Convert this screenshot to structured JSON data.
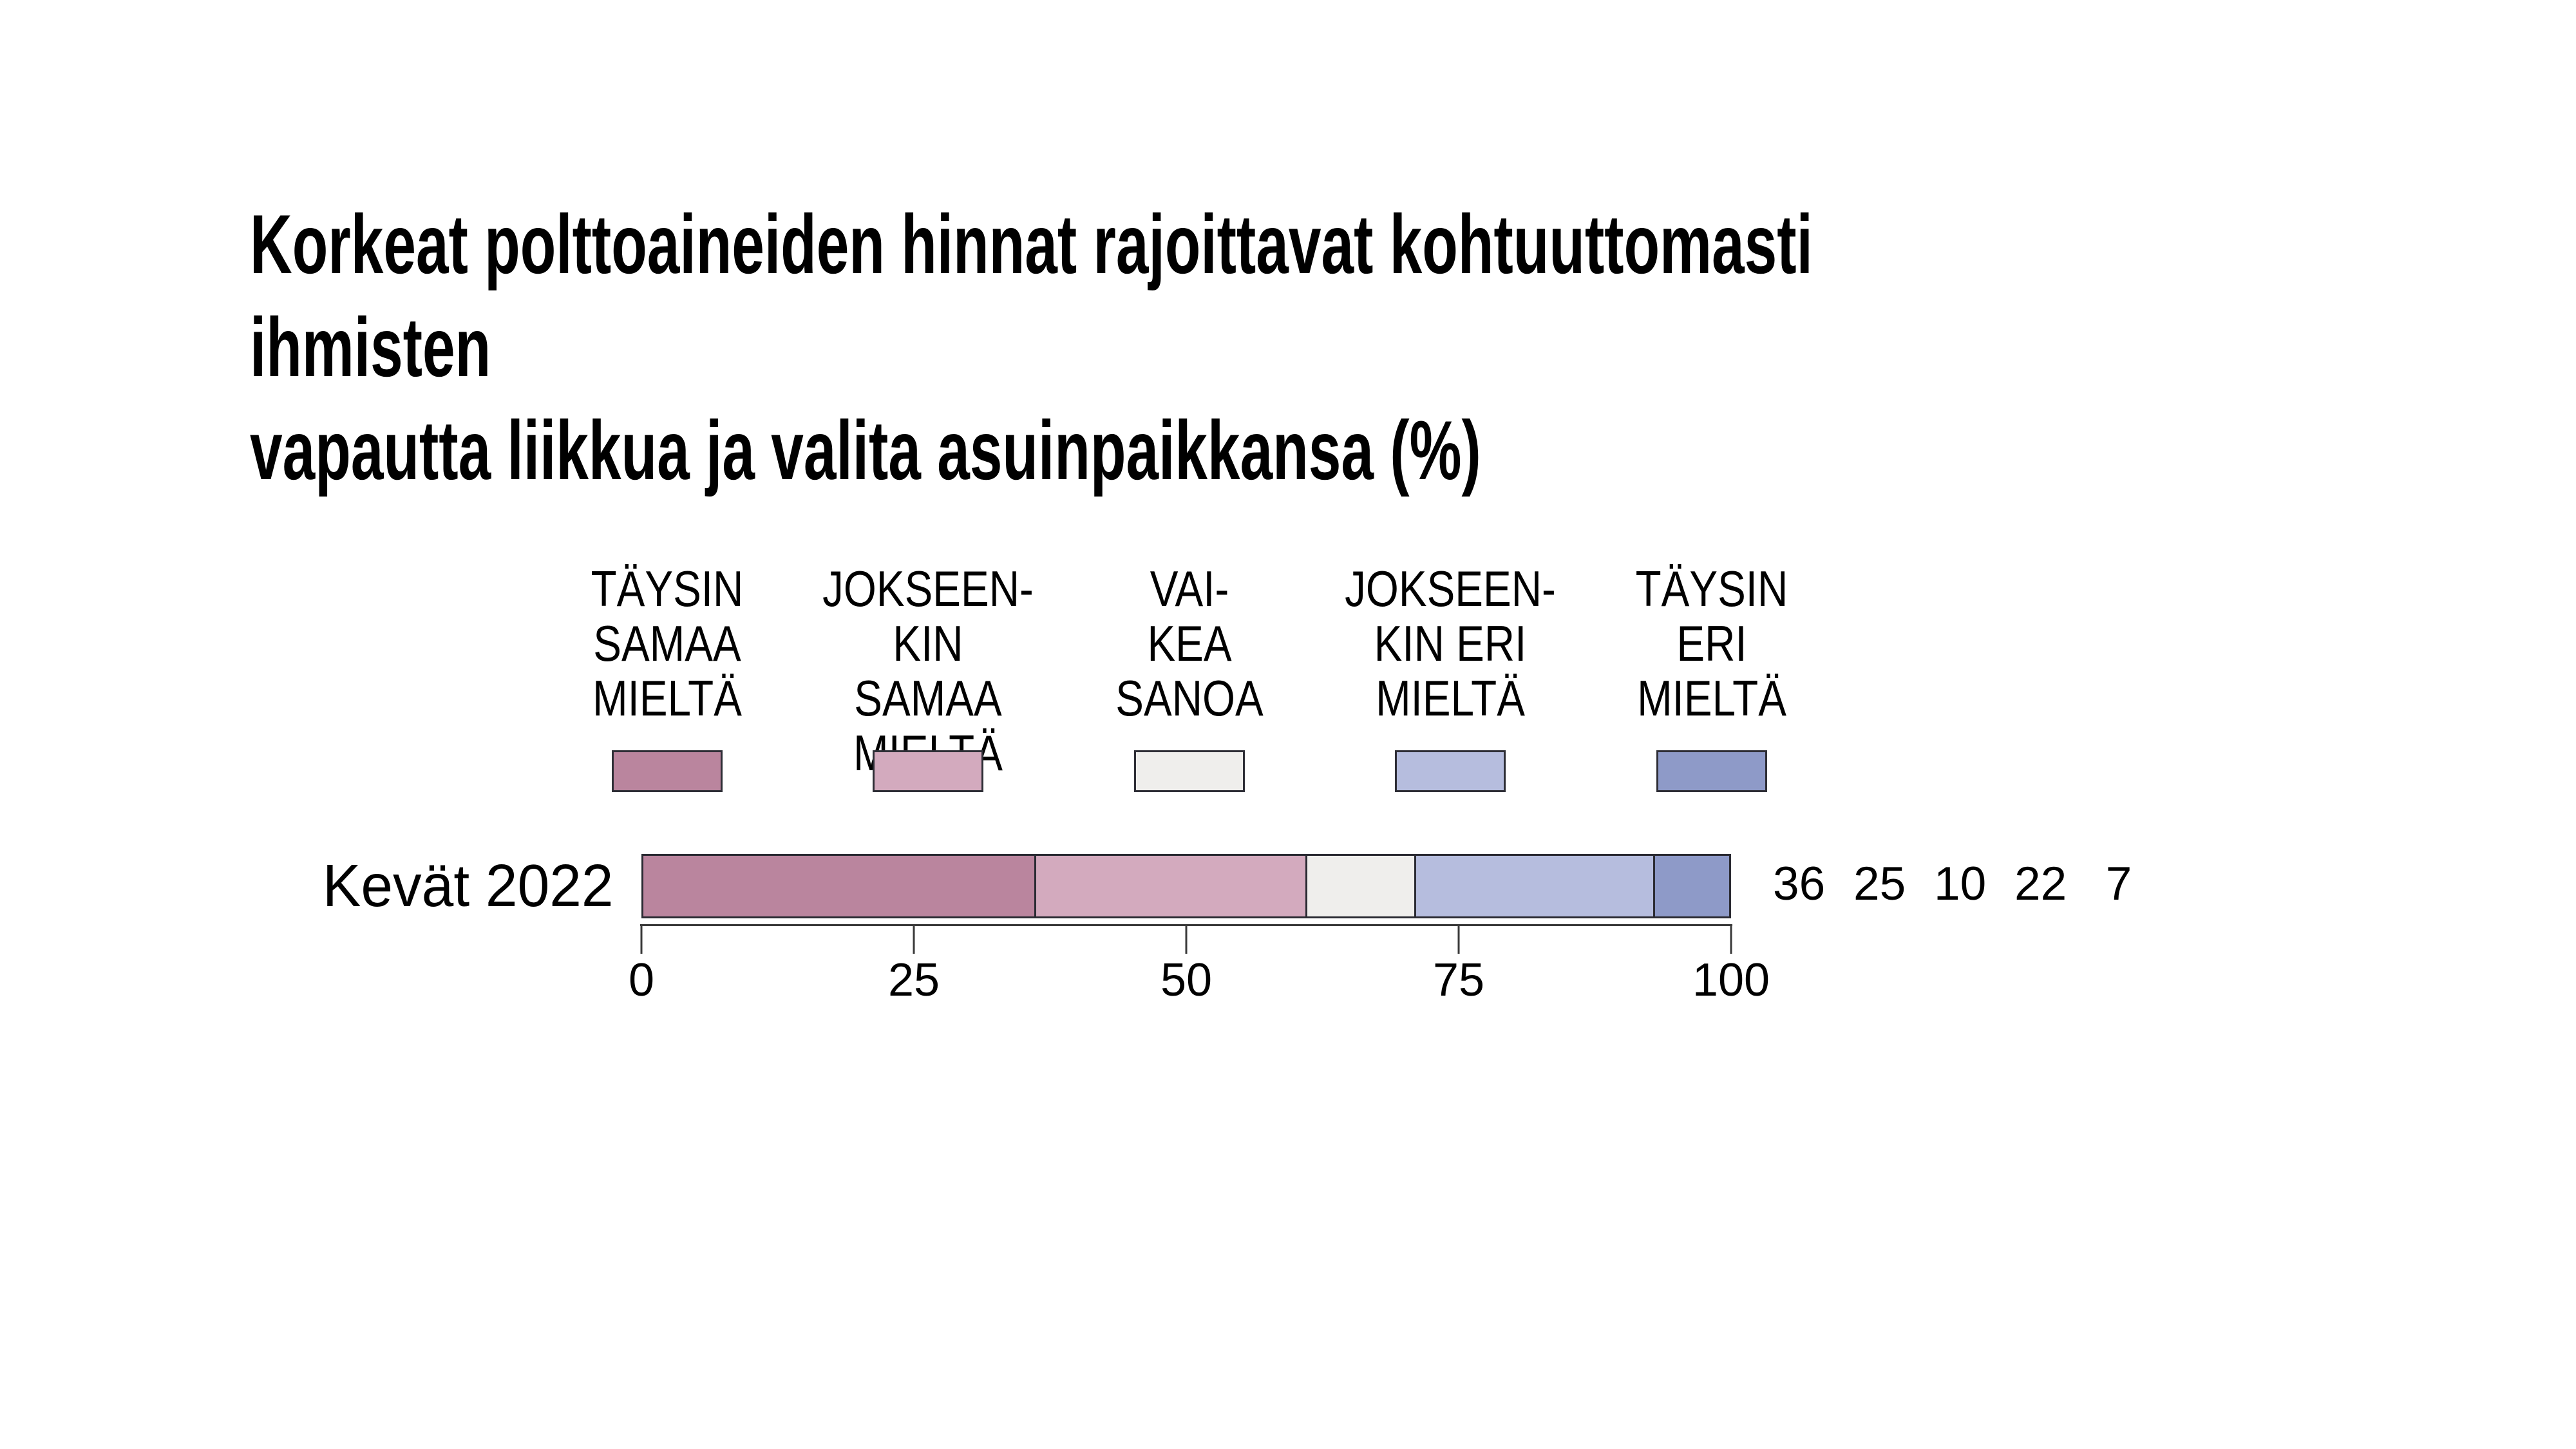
{
  "title": "Korkeat polttoaineiden hinnat rajoittavat kohtuuttomasti ihmisten\nvapautta liikkua ja valita asuinpaikkansa (%)",
  "legend": {
    "items": [
      {
        "label": "TÄYSIN\nSAMAA\nMIELTÄ",
        "color": "#ba859e"
      },
      {
        "label": "JOKSEEN-\nKIN SAMAA\nMIELTÄ",
        "color": "#d3aabe"
      },
      {
        "label": "VAI-\nKEA\nSANOA",
        "color": "#efeeec"
      },
      {
        "label": "JOKSEEN-\nKIN ERI\nMIELTÄ",
        "color": "#b6bdde"
      },
      {
        "label": "TÄYSIN\nERI\nMIELTÄ",
        "color": "#8e9ac8"
      }
    ]
  },
  "row": {
    "label": "Kevät 2022"
  },
  "values": [
    "36",
    "25",
    "10",
    "22",
    "7"
  ],
  "axis": {
    "ticks": [
      "0",
      "25",
      "50",
      "75",
      "100"
    ]
  },
  "chart_data": {
    "type": "bar",
    "orientation": "horizontal_stacked",
    "title": "Korkeat polttoaineiden hinnat rajoittavat kohtuuttomasti ihmisten vapautta liikkua ja valita asuinpaikkansa (%)",
    "categories": [
      "Kevät 2022"
    ],
    "series": [
      {
        "name": "TÄYSIN SAMAA MIELTÄ",
        "values": [
          36
        ],
        "color": "#ba859e"
      },
      {
        "name": "JOKSEENKIN SAMAA MIELTÄ",
        "values": [
          25
        ],
        "color": "#d3aabe"
      },
      {
        "name": "VAIKEA SANOA",
        "values": [
          10
        ],
        "color": "#efeeec"
      },
      {
        "name": "JOKSEENKIN ERI MIELTÄ",
        "values": [
          22
        ],
        "color": "#b6bdde"
      },
      {
        "name": "TÄYSIN ERI MIELTÄ",
        "values": [
          7
        ],
        "color": "#8e9ac8"
      }
    ],
    "value_labels": [
      36,
      25,
      10,
      22,
      7
    ],
    "xlim": [
      0,
      100
    ],
    "x_ticks": [
      0,
      25,
      50,
      75,
      100
    ],
    "grid": false,
    "legend_position": "top",
    "background": "#ffffff",
    "text_color": "#000000",
    "axis_color": "#3a3a3a"
  }
}
